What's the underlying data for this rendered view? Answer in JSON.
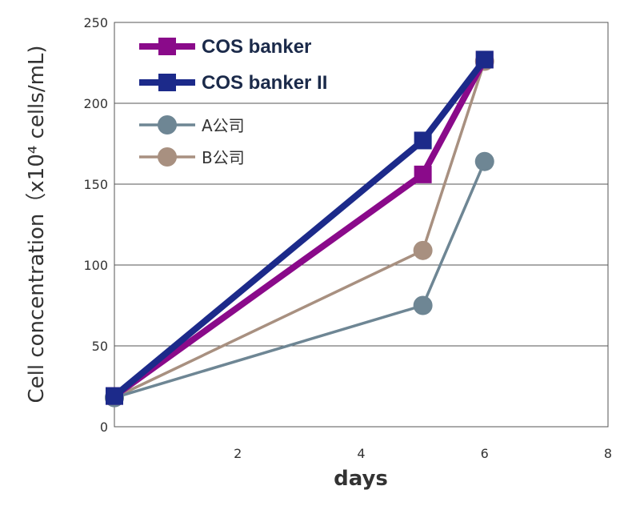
{
  "chart_data": {
    "type": "line",
    "title": "",
    "xlabel": "days",
    "ylabel": "Cell concentration（x10⁴ cells/mL)",
    "xlim": [
      0,
      8
    ],
    "ylim": [
      0,
      250
    ],
    "x_ticks": [
      "2",
      "4",
      "6",
      "8"
    ],
    "y_ticks": [
      "0",
      "50",
      "100",
      "150",
      "200",
      "250"
    ],
    "grid": "horizontal",
    "legend_position": "top-left",
    "series": [
      {
        "name": "COS banker",
        "color": "#8a0a8a",
        "marker": "square",
        "style": "thick",
        "points": [
          [
            0,
            19
          ],
          [
            5,
            156
          ],
          [
            6,
            227
          ]
        ]
      },
      {
        "name": "COS banker II",
        "color": "#1c2a8a",
        "marker": "square",
        "style": "thick",
        "points": [
          [
            0,
            19
          ],
          [
            5,
            177
          ],
          [
            6,
            227
          ]
        ]
      },
      {
        "name": "A公司",
        "color": "#6e8694",
        "marker": "circle",
        "style": "thin",
        "points": [
          [
            0,
            18
          ],
          [
            5,
            75
          ],
          [
            6,
            164
          ]
        ]
      },
      {
        "name": "B公司",
        "color": "#a89080",
        "marker": "circle",
        "style": "thin",
        "points": [
          [
            0,
            18
          ],
          [
            5,
            109
          ],
          [
            6,
            226
          ]
        ]
      }
    ]
  }
}
